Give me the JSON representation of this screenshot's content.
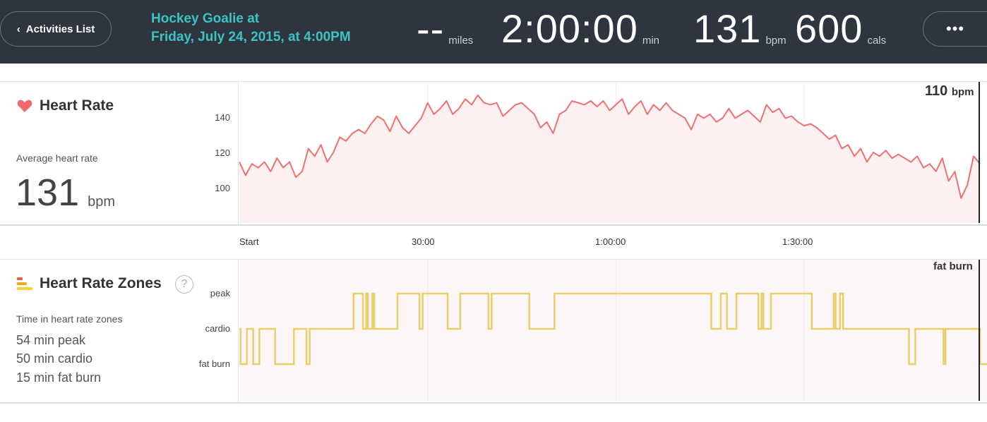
{
  "header": {
    "back_label": "Activities List",
    "back_icon": "chevron-left-icon",
    "title_line1": "Hockey Goalie at",
    "title_line2": "Friday, July 24, 2015, at 4:00PM",
    "more_label": "•••",
    "stats": [
      {
        "value": "--",
        "unit": "miles"
      },
      {
        "value": "2:00:00",
        "unit": "min"
      },
      {
        "value": "131",
        "unit": "bpm"
      },
      {
        "value": "600",
        "unit": "cals"
      }
    ]
  },
  "heart_rate": {
    "title": "Heart Rate",
    "icon": "heart-icon",
    "avg_label": "Average heart rate",
    "avg_value": "131",
    "avg_unit": "bpm",
    "current_value": "110",
    "current_unit": "bpm",
    "line_color": "#f07070",
    "fill_color": "#fdf0f0"
  },
  "zones": {
    "title": "Heart Rate Zones",
    "icon": "zones-bars-icon",
    "help_label": "?",
    "time_label": "Time in heart rate zones",
    "summary": [
      "54 min peak",
      "50 min cardio",
      "15 min fat burn"
    ],
    "current_zone": "fat burn",
    "line_color": "#e8cf6a",
    "fill_color": "#fdf6f6"
  },
  "chart_data": [
    {
      "type": "line",
      "xlabel": "",
      "ylabel": "",
      "x_ticks": [
        "Start",
        "30:00",
        "1:00:00",
        "1:30:00"
      ],
      "y_ticks": [
        100,
        120,
        140
      ],
      "ylim": [
        83,
        157
      ],
      "xlim": [
        0,
        118
      ],
      "series": [
        {
          "x": [
            0,
            1,
            2,
            3,
            4,
            5,
            6,
            7,
            8,
            9,
            10,
            11,
            12,
            13,
            14,
            15,
            16,
            17,
            18,
            19,
            20,
            21,
            22,
            23,
            24,
            25,
            26,
            27,
            28,
            29,
            30,
            31,
            32,
            33,
            34,
            35,
            36,
            37,
            38,
            39,
            40,
            41,
            42,
            43,
            44,
            45,
            46,
            47,
            48,
            49,
            50,
            51,
            52,
            53,
            54,
            55,
            56,
            57,
            58,
            59,
            60,
            61,
            62,
            63,
            64,
            65,
            66,
            67,
            68,
            69,
            70,
            71,
            72,
            73,
            74,
            75,
            76,
            77,
            78,
            79,
            80,
            81,
            82,
            83,
            84,
            85,
            86,
            87,
            88,
            89,
            90,
            91,
            92,
            93,
            94,
            95,
            96,
            97,
            98,
            99,
            100,
            101,
            102,
            103,
            104,
            105,
            106,
            107,
            108,
            109,
            110,
            111,
            112,
            113,
            114,
            115,
            116,
            117,
            118
          ],
          "y": [
            115,
            108,
            114,
            112,
            115,
            110,
            117,
            112,
            115,
            107,
            110,
            122,
            118,
            124,
            115,
            120,
            128,
            126,
            130,
            132,
            130,
            135,
            139,
            137,
            131,
            139,
            133,
            130,
            134,
            138,
            146,
            140,
            143,
            147,
            140,
            143,
            148,
            145,
            150,
            146,
            145,
            146,
            139,
            142,
            145,
            146,
            143,
            140,
            133,
            136,
            130,
            140,
            142,
            147,
            146,
            145,
            147,
            144,
            147,
            142,
            145,
            148,
            140,
            144,
            147,
            140,
            145,
            142,
            146,
            142,
            140,
            138,
            132,
            140,
            138,
            140,
            136,
            138,
            143,
            138,
            140,
            142,
            139,
            136,
            145,
            141,
            143,
            138,
            139,
            136,
            134,
            135,
            133,
            130,
            127,
            129,
            122,
            124,
            118,
            122,
            115,
            120,
            118,
            121,
            117,
            119,
            117,
            115,
            118,
            112,
            114,
            110,
            117,
            105,
            110,
            96,
            103,
            118,
            114
          ]
        }
      ]
    },
    {
      "type": "line",
      "xlabel": "",
      "ylabel": "",
      "x_ticks": [
        "Start",
        "30:00",
        "1:00:00",
        "1:30:00"
      ],
      "y_ticks": [
        "peak",
        "cardio",
        "fat burn"
      ],
      "y_levels": {
        "fat burn": 1,
        "cardio": 2,
        "peak": 3
      },
      "series": [
        {
          "steps": [
            [
              0,
              2
            ],
            [
              0.2,
              1
            ],
            [
              1.2,
              2
            ],
            [
              2.2,
              1
            ],
            [
              3.2,
              2
            ],
            [
              5.7,
              1
            ],
            [
              8.7,
              2
            ],
            [
              10.7,
              1
            ],
            [
              11.2,
              2
            ],
            [
              18.2,
              3
            ],
            [
              19.7,
              2
            ],
            [
              20.2,
              3
            ],
            [
              20.5,
              2
            ],
            [
              21.2,
              3
            ],
            [
              21.5,
              2
            ],
            [
              25.2,
              3
            ],
            [
              28.7,
              2
            ],
            [
              29.2,
              3
            ],
            [
              33.2,
              2
            ],
            [
              35.2,
              3
            ],
            [
              39.7,
              2
            ],
            [
              40.2,
              3
            ],
            [
              46.2,
              2
            ],
            [
              50.2,
              3
            ],
            [
              75.2,
              2
            ],
            [
              76.7,
              3
            ],
            [
              77.7,
              2
            ],
            [
              79.2,
              3
            ],
            [
              82.7,
              2
            ],
            [
              83.2,
              3
            ],
            [
              83.5,
              2
            ],
            [
              84.7,
              3
            ],
            [
              91.2,
              2
            ],
            [
              94.7,
              3
            ],
            [
              95.0,
              2
            ],
            [
              95.7,
              3
            ],
            [
              96.2,
              2
            ],
            [
              106.7,
              1
            ],
            [
              107.7,
              2
            ],
            [
              112.2,
              1
            ],
            [
              112.5,
              2
            ],
            [
              118.0,
              1
            ]
          ]
        }
      ]
    }
  ]
}
